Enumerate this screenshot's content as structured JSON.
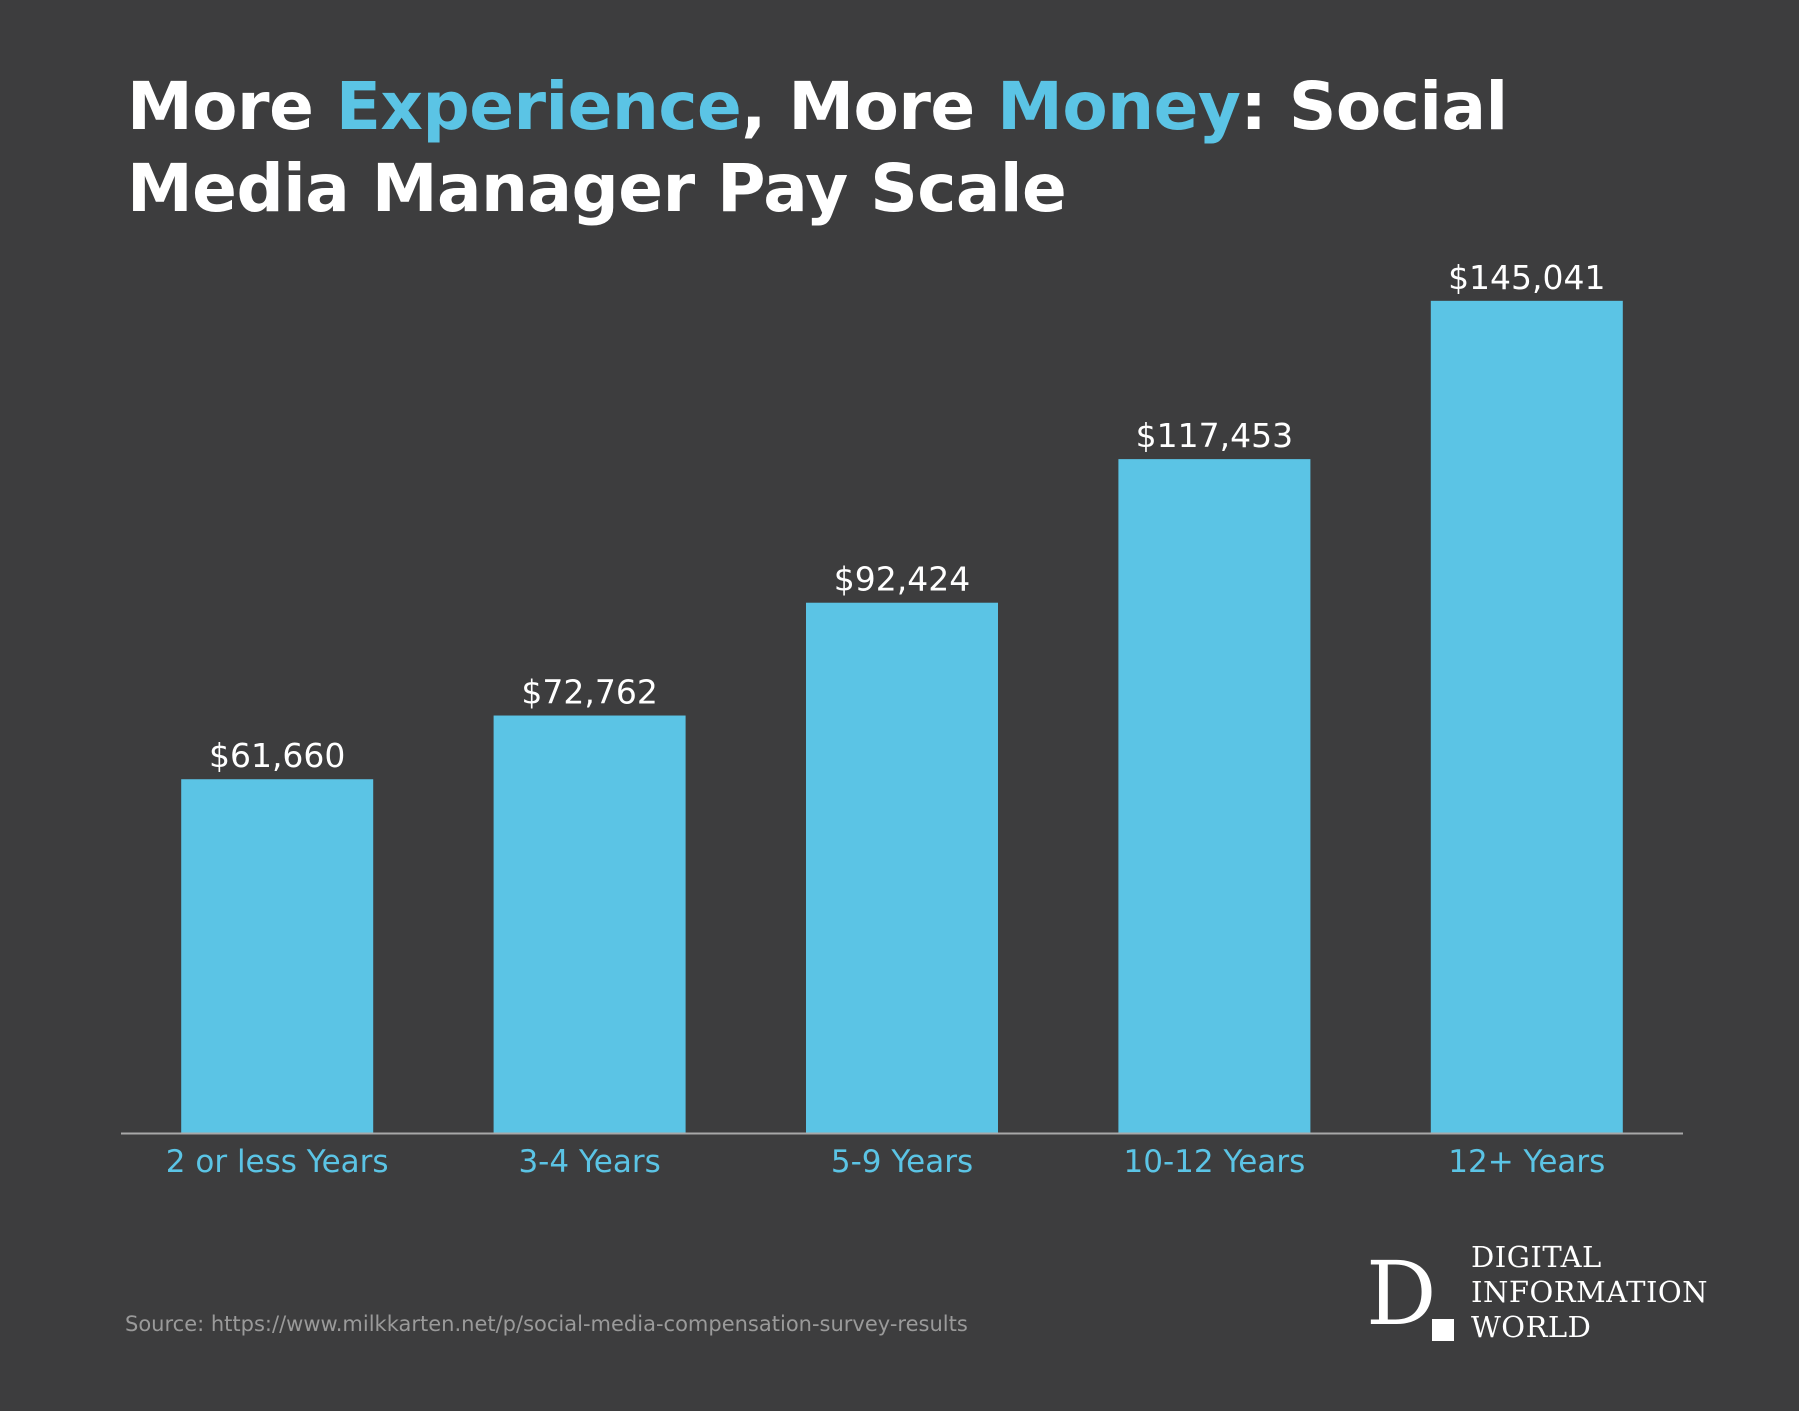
{
  "header": {
    "title_parts": [
      {
        "text": "More ",
        "accent": false
      },
      {
        "text": "Experience",
        "accent": true
      },
      {
        "text": ", More ",
        "accent": false
      },
      {
        "text": "Money",
        "accent": true
      },
      {
        "text": ": Social Media Manager Pay Scale",
        "accent": false
      }
    ]
  },
  "chart_data": {
    "type": "bar",
    "title": "More Experience, More Money: Social Media Manager Pay Scale",
    "categories": [
      "2 or less Years",
      "3-4 Years",
      "5-9 Years",
      "10-12 Years",
      "12+ Years"
    ],
    "values": [
      61660,
      72762,
      92424,
      117453,
      145041
    ],
    "value_labels": [
      "$61,660",
      "$72,762",
      "$92,424",
      "$117,453",
      "$145,041"
    ],
    "xlabel": "",
    "ylabel": "",
    "ylim": [
      0,
      160000
    ],
    "grid": false,
    "legend": "none"
  },
  "footer": {
    "source": "Source: https://www.milkkarten.net/p/social-media-compensation-survey-results"
  },
  "logo": {
    "letter": "D",
    "lines": [
      "DIGITAL",
      "INFORMATION",
      "WORLD"
    ]
  },
  "colors": {
    "background": "#3d3d3e",
    "bar": "#5bc4e5",
    "accent": "#5bc4e5",
    "title": "#ffffff",
    "value_label": "#ffffff",
    "category_label": "#5bc4e5",
    "axis": "#a8a8a8",
    "source": "#9a9a9a"
  }
}
